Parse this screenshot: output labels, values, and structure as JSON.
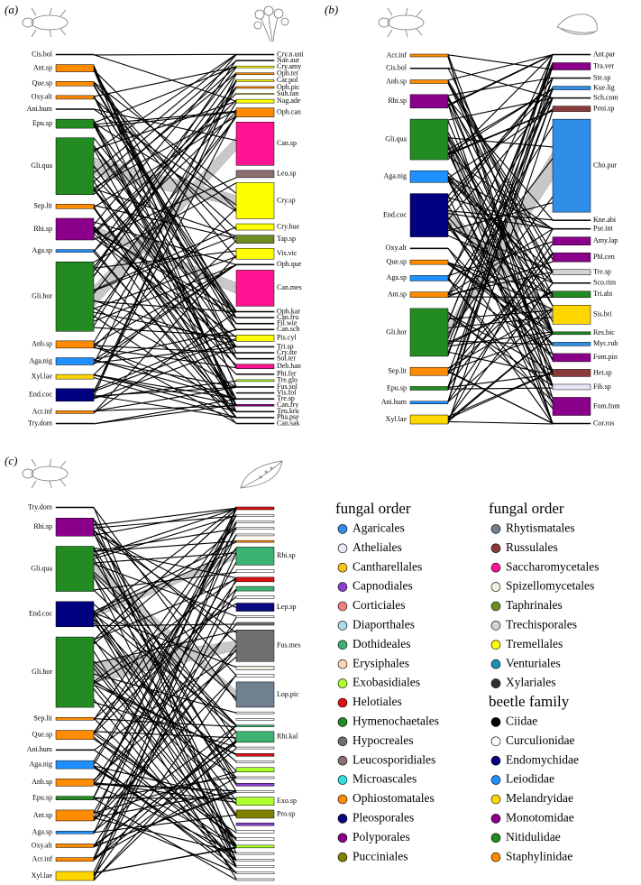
{
  "panels": [
    {
      "tag": "(a)",
      "lower": [
        {
          "label": "Cis.bol",
          "color": "#000000",
          "size": 1
        },
        {
          "label": "Ant.sp",
          "color": "#ff8c00",
          "size": 8
        },
        {
          "label": "Que.sp",
          "color": "#ff8c00",
          "size": 5
        },
        {
          "label": "Oxy.alt",
          "color": "#ff8c00",
          "size": 4
        },
        {
          "label": "Ani.hum",
          "color": "#000000",
          "size": 1
        },
        {
          "label": "Epu.sp",
          "color": "#228b22",
          "size": 10
        },
        {
          "label": "Gli.qua",
          "color": "#228b22",
          "size": 63
        },
        {
          "label": "Sep.lit",
          "color": "#ff8c00",
          "size": 5
        },
        {
          "label": "Rhi.sp",
          "color": "#8b008b",
          "size": 24
        },
        {
          "label": "Aga.sp",
          "color": "#1e90ff",
          "size": 3
        },
        {
          "label": "Gli.hor",
          "color": "#228b22",
          "size": 77
        },
        {
          "label": "Anb.sp",
          "color": "#ff8c00",
          "size": 8
        },
        {
          "label": "Aga.nig",
          "color": "#1e90ff",
          "size": 8
        },
        {
          "label": "Xyl.lae",
          "color": "#ffd700",
          "size": 5
        },
        {
          "label": "End.coc",
          "color": "#000080",
          "size": 14
        },
        {
          "label": "Acr.inf",
          "color": "#ff8c00",
          "size": 3
        },
        {
          "label": "Try.dom",
          "color": "#000000",
          "size": 1
        }
      ],
      "upper": [
        {
          "label": "Cry.n.uni",
          "color": "#000000",
          "size": 1
        },
        {
          "label": "Nae.aur",
          "color": "#000000",
          "size": 1
        },
        {
          "label": "Cry.amy",
          "color": "#ffff00",
          "size": 2
        },
        {
          "label": "Oph.tet",
          "color": "#ff8c00",
          "size": 2
        },
        {
          "label": "Car.pol",
          "color": "#ffff00",
          "size": 2
        },
        {
          "label": "Oph.pic",
          "color": "#ff8c00",
          "size": 2
        },
        {
          "label": "Suh.tan",
          "color": "#ffff00",
          "size": 1
        },
        {
          "label": "Nag.ade",
          "color": "#ffff00",
          "size": 4
        },
        {
          "label": "Oph.can",
          "color": "#ff8c00",
          "size": 10
        },
        {
          "label": "Can.sp",
          "color": "#ff1493",
          "size": 48
        },
        {
          "label": "Leu.sp",
          "color": "#8b6f6f",
          "size": 8
        },
        {
          "label": "Cry.sp",
          "color": "#ffff00",
          "size": 40
        },
        {
          "label": "Cry.hue",
          "color": "#ffff00",
          "size": 7
        },
        {
          "label": "Tap.sp",
          "color": "#6b8e23",
          "size": 9
        },
        {
          "label": "Vis.vic",
          "color": "#ffff00",
          "size": 12
        },
        {
          "label": "Oph.que",
          "color": "#000000",
          "size": 1
        },
        {
          "label": "Can.mes",
          "color": "#ff1493",
          "size": 40
        },
        {
          "label": "Oph.kar",
          "color": "#000000",
          "size": 1
        },
        {
          "label": "Can.fru",
          "color": "#000000",
          "size": 1
        },
        {
          "label": "Fil.wie",
          "color": "#000000",
          "size": 1
        },
        {
          "label": "Can.sch",
          "color": "#000000",
          "size": 1
        },
        {
          "label": "Pis.cyl",
          "color": "#ffff00",
          "size": 7
        },
        {
          "label": "Tri.sp",
          "color": "#000000",
          "size": 1
        },
        {
          "label": "Cry.ste",
          "color": "#000000",
          "size": 1
        },
        {
          "label": "Sol.ter",
          "color": "#000000",
          "size": 1
        },
        {
          "label": "Deb.han",
          "color": "#ff1493",
          "size": 5
        },
        {
          "label": "Phi.fer",
          "color": "#000000",
          "size": 1
        },
        {
          "label": "Tre.glo",
          "color": "#adff2f",
          "size": 2
        },
        {
          "label": "Fus.sol",
          "color": "#000000",
          "size": 1
        },
        {
          "label": "Vis.fol",
          "color": "#000000",
          "size": 1
        },
        {
          "label": "Tre.sp",
          "color": "#000000",
          "size": 1
        },
        {
          "label": "Can.fry",
          "color": "#8b008b",
          "size": 2
        },
        {
          "label": "Teu.kru",
          "color": "#000000",
          "size": 1
        },
        {
          "label": "Pha.pse",
          "color": "#000000",
          "size": 1
        },
        {
          "label": "Can.sak",
          "color": "#000000",
          "size": 1
        }
      ]
    },
    {
      "tag": "(b)",
      "lower": [
        {
          "label": "Acr.inf",
          "color": "#ff8c00",
          "size": 3
        },
        {
          "label": "Cis.bol",
          "color": "#000000",
          "size": 1
        },
        {
          "label": "Anb.sp",
          "color": "#ff8c00",
          "size": 4
        },
        {
          "label": "Rhi.sp",
          "color": "#8b008b",
          "size": 15
        },
        {
          "label": "Gli.qua",
          "color": "#228b22",
          "size": 45
        },
        {
          "label": "Aga.nig",
          "color": "#1e90ff",
          "size": 13
        },
        {
          "label": "End.coc",
          "color": "#000080",
          "size": 48
        },
        {
          "label": "Oxy.alt",
          "color": "#000000",
          "size": 1
        },
        {
          "label": "Que.sp",
          "color": "#ff8c00",
          "size": 5
        },
        {
          "label": "Aga.sp",
          "color": "#1e90ff",
          "size": 6
        },
        {
          "label": "Ant.sp",
          "color": "#ff8c00",
          "size": 6
        },
        {
          "label": "Gli.hor",
          "color": "#228b22",
          "size": 53
        },
        {
          "label": "Sep.lit",
          "color": "#ff8c00",
          "size": 9
        },
        {
          "label": "Epu.sp",
          "color": "#228b22",
          "size": 4
        },
        {
          "label": "Ani.hum",
          "color": "#1e90ff",
          "size": 3
        },
        {
          "label": "Xyl.lae",
          "color": "#ffd700",
          "size": 10
        }
      ],
      "upper": [
        {
          "label": "Ant.par",
          "color": "#000000",
          "size": 1
        },
        {
          "label": "Tra.ver",
          "color": "#8b008b",
          "size": 8
        },
        {
          "label": "Ste.sp",
          "color": "#000000",
          "size": 1
        },
        {
          "label": "Kue.lig",
          "color": "#2e8ee8",
          "size": 4
        },
        {
          "label": "Sch.com",
          "color": "#000000",
          "size": 1
        },
        {
          "label": "Peni.sp",
          "color": "#8b3a3a",
          "size": 6
        },
        {
          "label": "Cho.pur",
          "color": "#2e8ee8",
          "size": 103
        },
        {
          "label": "Kne.abi",
          "color": "#000000",
          "size": 1
        },
        {
          "label": "Pse.int",
          "color": "#000000",
          "size": 1
        },
        {
          "label": "Amy.lap",
          "color": "#8b008b",
          "size": 9
        },
        {
          "label": "Phl.cen",
          "color": "#8b008b",
          "size": 10
        },
        {
          "label": "Tre.sp",
          "color": "#d3d3d3",
          "size": 6
        },
        {
          "label": "Sco.rim",
          "color": "#000000",
          "size": 1
        },
        {
          "label": "Tri.abi",
          "color": "#228b22",
          "size": 7
        },
        {
          "label": "Sis.bri",
          "color": "#ffd700",
          "size": 21
        },
        {
          "label": "Res.bic",
          "color": "#228b22",
          "size": 3
        },
        {
          "label": "Myc.rub",
          "color": "#2e8ee8",
          "size": 4
        },
        {
          "label": "Fom.pin",
          "color": "#8b008b",
          "size": 9
        },
        {
          "label": "Het.sp",
          "color": "#8b3a3a",
          "size": 8
        },
        {
          "label": "Fib.sp",
          "color": "#e6e6f5",
          "size": 6
        },
        {
          "label": "Fom.fom",
          "color": "#8b008b",
          "size": 20
        },
        {
          "label": "Cor.ros",
          "color": "#000000",
          "size": 1
        }
      ]
    },
    {
      "tag": "(c)",
      "lower": [
        {
          "label": "Try.dom",
          "color": "#000000",
          "size": 1
        },
        {
          "label": "Rhi.sp",
          "color": "#8b008b",
          "size": 20
        },
        {
          "label": "Gli.qua",
          "color": "#228b22",
          "size": 50
        },
        {
          "label": "End.coc",
          "color": "#000080",
          "size": 28
        },
        {
          "label": "Gli.hor",
          "color": "#228b22",
          "size": 78
        },
        {
          "label": "Sep.lit",
          "color": "#ff8c00",
          "size": 3
        },
        {
          "label": "Que.sp",
          "color": "#ff8c00",
          "size": 10
        },
        {
          "label": "Ani.hum",
          "color": "#000000",
          "size": 1
        },
        {
          "label": "Aga.nig",
          "color": "#1e90ff",
          "size": 9
        },
        {
          "label": "Anb.sp",
          "color": "#ff8c00",
          "size": 8
        },
        {
          "label": "Epu.sp",
          "color": "#228b22",
          "size": 4
        },
        {
          "label": "Ant.sp",
          "color": "#ff8c00",
          "size": 12
        },
        {
          "label": "Aga.sp",
          "color": "#1e90ff",
          "size": 3
        },
        {
          "label": "Oxy.alt",
          "color": "#ff8c00",
          "size": 4
        },
        {
          "label": "Acr.inf",
          "color": "#ff8c00",
          "size": 4
        },
        {
          "label": "Xyl.lae",
          "color": "#ffd700",
          "size": 10
        }
      ],
      "upper": [
        {
          "label": null,
          "color": "#e01010",
          "size": 3
        },
        {
          "label": null,
          "color": "#ffffff",
          "size": 2
        },
        {
          "label": null,
          "color": "#ffffff",
          "size": 2
        },
        {
          "label": null,
          "color": "#ffffff",
          "size": 2
        },
        {
          "label": null,
          "color": "#ffffff",
          "size": 2
        },
        {
          "label": null,
          "color": "#ff8c00",
          "size": 2
        },
        {
          "label": "Rhi.sp",
          "color": "#3cb371",
          "size": 20
        },
        {
          "label": null,
          "color": "#ffffff",
          "size": 3
        },
        {
          "label": null,
          "color": "#e01010",
          "size": 5
        },
        {
          "label": null,
          "color": "#3cb371",
          "size": 5
        },
        {
          "label": null,
          "color": "#ffffff",
          "size": 3
        },
        {
          "label": "Lep.sp",
          "color": "#0a0a80",
          "size": 9
        },
        {
          "label": null,
          "color": "#ffffff",
          "size": 2
        },
        {
          "label": null,
          "color": "#707070",
          "size": 3
        },
        {
          "label": "Fus.mes",
          "color": "#707070",
          "size": 35
        },
        {
          "label": null,
          "color": "#eeeee0",
          "size": 4
        },
        {
          "label": null,
          "color": "#ffffff",
          "size": 3
        },
        {
          "label": "Lop.pic",
          "color": "#708090",
          "size": 28
        },
        {
          "label": null,
          "color": "#ffffff",
          "size": 2
        },
        {
          "label": null,
          "color": "#ffffff",
          "size": 2
        },
        {
          "label": null,
          "color": "#3cb371",
          "size": 2
        },
        {
          "label": "Rhi.kal",
          "color": "#3cb371",
          "size": 12
        },
        {
          "label": null,
          "color": "#ffffff",
          "size": 2
        },
        {
          "label": null,
          "color": "#e01010",
          "size": 3
        },
        {
          "label": null,
          "color": "#ffffff",
          "size": 2
        },
        {
          "label": null,
          "color": "#adff2f",
          "size": 5
        },
        {
          "label": null,
          "color": "#ffffff",
          "size": 2
        },
        {
          "label": null,
          "color": "#8a3fd1",
          "size": 3
        },
        {
          "label": null,
          "color": "#ffffff",
          "size": 2
        },
        {
          "label": "Exo.sp",
          "color": "#adff2f",
          "size": 9
        },
        {
          "label": "Pro.sp",
          "color": "#808000",
          "size": 9
        },
        {
          "label": null,
          "color": "#8a3fd1",
          "size": 3
        },
        {
          "label": null,
          "color": "#ffffff",
          "size": 3
        },
        {
          "label": null,
          "color": "#ffffff",
          "size": 3
        },
        {
          "label": null,
          "color": "#adff2f",
          "size": 3
        },
        {
          "label": null,
          "color": "#ffffff",
          "size": 2
        },
        {
          "label": null,
          "color": "#ffffff",
          "size": 2
        },
        {
          "label": null,
          "color": "#ffffff",
          "size": 2
        },
        {
          "label": null,
          "color": "#ffffff",
          "size": 2
        },
        {
          "label": null,
          "color": "#ffffff",
          "size": 2
        }
      ]
    }
  ],
  "legend": [
    {
      "sections": [
        {
          "title": "fungal order",
          "items": [
            {
              "name": "Agaricales",
              "color": "#2e8ee8"
            },
            {
              "name": "Atheliales",
              "color": "#e6e6f5"
            },
            {
              "name": "Cantharellales",
              "color": "#f5c518"
            },
            {
              "name": "Capnodiales",
              "color": "#8a3fd1"
            },
            {
              "name": "Corticiales",
              "color": "#f08080"
            },
            {
              "name": "Diaporthales",
              "color": "#add8e6"
            },
            {
              "name": "Dothideales",
              "color": "#3cb371"
            },
            {
              "name": "Erysiphales",
              "color": "#fbd5b0"
            },
            {
              "name": "Exobasidiales",
              "color": "#adff2f"
            },
            {
              "name": "Helotiales",
              "color": "#e01010"
            },
            {
              "name": "Hymenochaetales",
              "color": "#228b22"
            },
            {
              "name": "Hypocreales",
              "color": "#707070"
            },
            {
              "name": "Leucosporidiales",
              "color": "#8b6f6f"
            },
            {
              "name": "Microascales",
              "color": "#30e0e0"
            },
            {
              "name": "Ophiostomatales",
              "color": "#ff8c00"
            },
            {
              "name": "Pleosporales",
              "color": "#0a0a80"
            },
            {
              "name": "Polyporales",
              "color": "#8b008b"
            },
            {
              "name": "Pucciniales",
              "color": "#808000"
            }
          ]
        }
      ]
    },
    {
      "sections": [
        {
          "title": "fungal order",
          "items": [
            {
              "name": "Rhytismatales",
              "color": "#708090"
            },
            {
              "name": "Russulales",
              "color": "#8b3a3a"
            },
            {
              "name": "Saccharomycetales",
              "color": "#ff1493"
            },
            {
              "name": "Spizellomycetales",
              "color": "#eeeee0"
            },
            {
              "name": "Taphrinales",
              "color": "#6b8e23"
            },
            {
              "name": "Trechisporales",
              "color": "#d3d3d3"
            },
            {
              "name": "Tremellales",
              "color": "#ffff00"
            },
            {
              "name": "Venturiales",
              "color": "#1e90b4"
            },
            {
              "name": "Xylariales",
              "color": "#303030"
            }
          ]
        },
        {
          "title": "beetle family",
          "items": [
            {
              "name": "Ciidae",
              "color": "#000000"
            },
            {
              "name": "Curculionidae",
              "color": "#ffffff"
            },
            {
              "name": "Endomychidae",
              "color": "#000080"
            },
            {
              "name": "Leiodidae",
              "color": "#1e90ff"
            },
            {
              "name": "Melandryidae",
              "color": "#ffd700"
            },
            {
              "name": "Monotomidae",
              "color": "#8b008b"
            },
            {
              "name": "Nitidulidae",
              "color": "#228b22"
            },
            {
              "name": "Staphylinidae",
              "color": "#ff8c00"
            }
          ]
        }
      ]
    }
  ]
}
